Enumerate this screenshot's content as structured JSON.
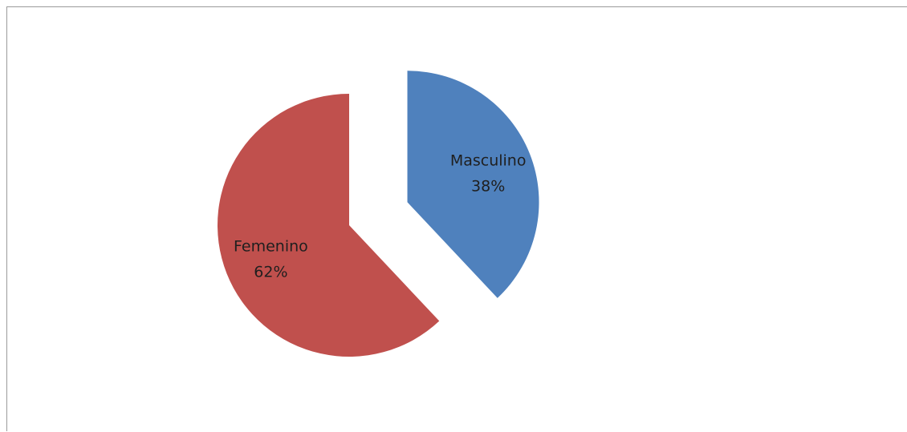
{
  "chart_data": {
    "type": "pie",
    "title": "",
    "slices": [
      {
        "label": "Masculino",
        "value": 38,
        "display": "38%",
        "color": "#4f81bd"
      },
      {
        "label": "Femenino",
        "value": 62,
        "display": "62%",
        "color": "#c0504d"
      }
    ],
    "legend": "none",
    "data_labels": "inside",
    "exploded": true
  }
}
